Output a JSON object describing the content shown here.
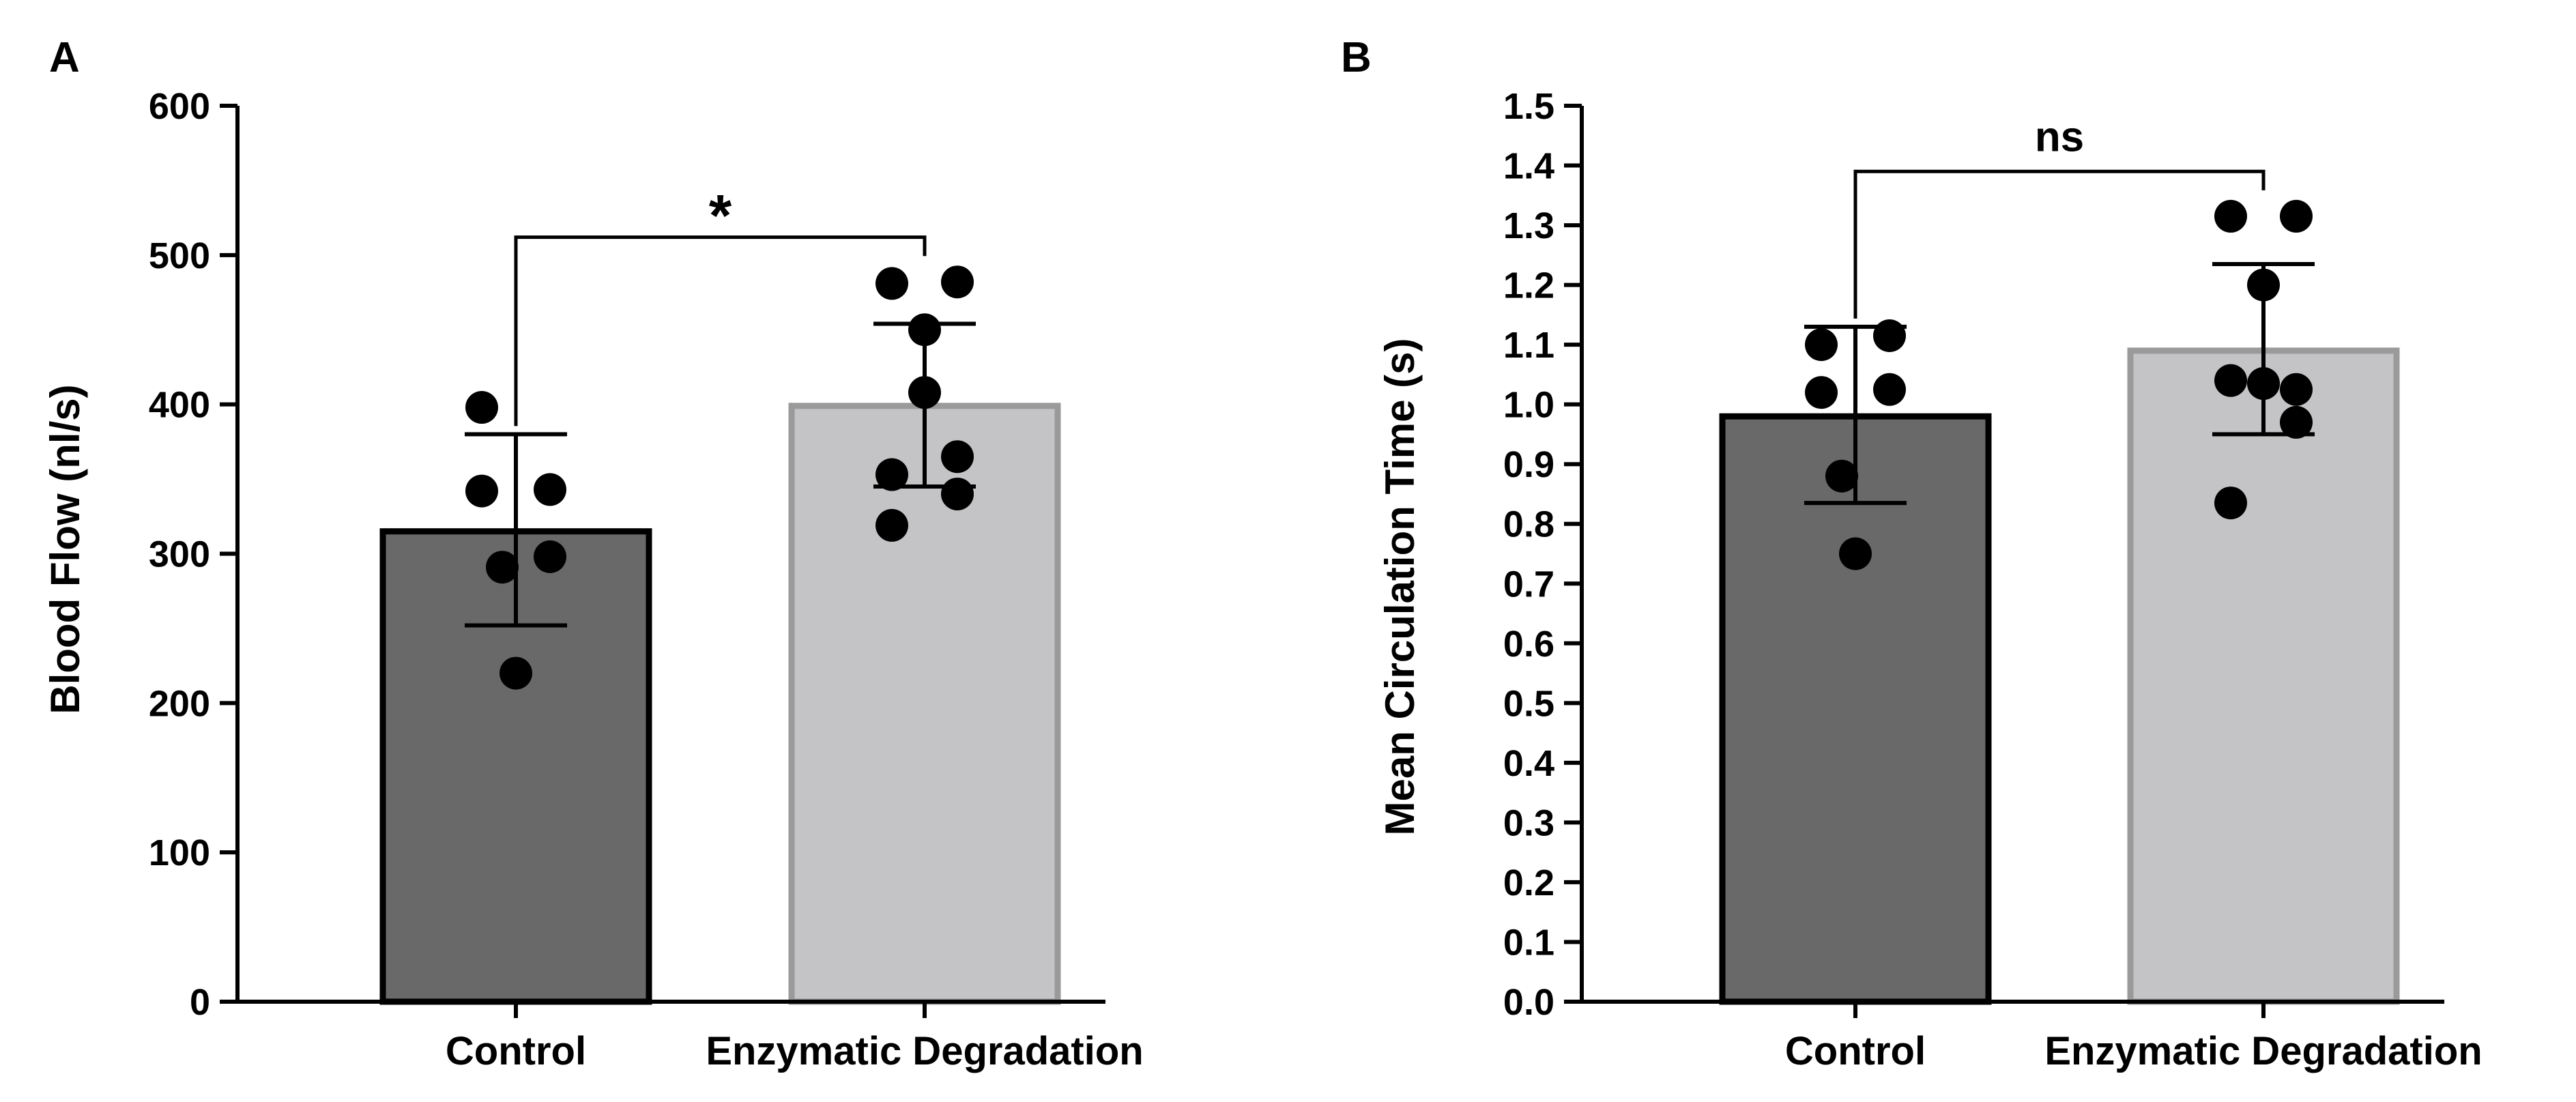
{
  "colors": {
    "control_bar": "#696969",
    "enzymatic_bar": "#c4c4c6",
    "enzymatic_border": "#9a9a9a",
    "axis": "#000000",
    "points": "#000000"
  },
  "chart_data": [
    {
      "panel": "A",
      "type": "bar",
      "title": "",
      "xlabel": "",
      "ylabel": "Blood Flow (nl/s)",
      "ylim": [
        0,
        600
      ],
      "yticks": [
        "0",
        "100",
        "200",
        "300",
        "400",
        "500",
        "600"
      ],
      "categories": [
        "Control",
        "Enzymatic Degradation"
      ],
      "series": [
        {
          "name": "Control",
          "mean": 315,
          "sd_lower": 252,
          "sd_upper": 380,
          "points": [
            398,
            343,
            342,
            298,
            291,
            220
          ]
        },
        {
          "name": "Enzymatic Degradation",
          "mean": 399,
          "sd_lower": 345,
          "sd_upper": 454,
          "points": [
            481,
            482,
            450,
            408,
            353,
            365,
            340,
            319
          ]
        }
      ],
      "significance": {
        "label": "*",
        "between": [
          "Control",
          "Enzymatic Degradation"
        ],
        "y": 512
      }
    },
    {
      "panel": "B",
      "type": "bar",
      "title": "",
      "xlabel": "",
      "ylabel": "Mean Circulation Time (s)",
      "ylim": [
        0.0,
        1.5
      ],
      "yticks": [
        "0.0",
        "0.1",
        "0.2",
        "0.3",
        "0.4",
        "0.5",
        "0.6",
        "0.7",
        "0.8",
        "0.9",
        "1.0",
        "1.1",
        "1.2",
        "1.3",
        "1.4",
        "1.5"
      ],
      "categories": [
        "Control",
        "Enzymatic Degradation"
      ],
      "series": [
        {
          "name": "Control",
          "mean": 0.98,
          "sd_lower": 0.835,
          "sd_upper": 1.13,
          "points": [
            1.1,
            1.115,
            1.02,
            1.025,
            0.88,
            0.75
          ]
        },
        {
          "name": "Enzymatic Degradation",
          "mean": 1.09,
          "sd_lower": 0.95,
          "sd_upper": 1.235,
          "points": [
            1.315,
            1.315,
            1.2,
            1.035,
            1.04,
            1.025,
            0.97,
            0.835
          ]
        }
      ],
      "significance": {
        "label": "ns",
        "between": [
          "Control",
          "Enzymatic Degradation"
        ],
        "y": 1.39
      }
    }
  ]
}
